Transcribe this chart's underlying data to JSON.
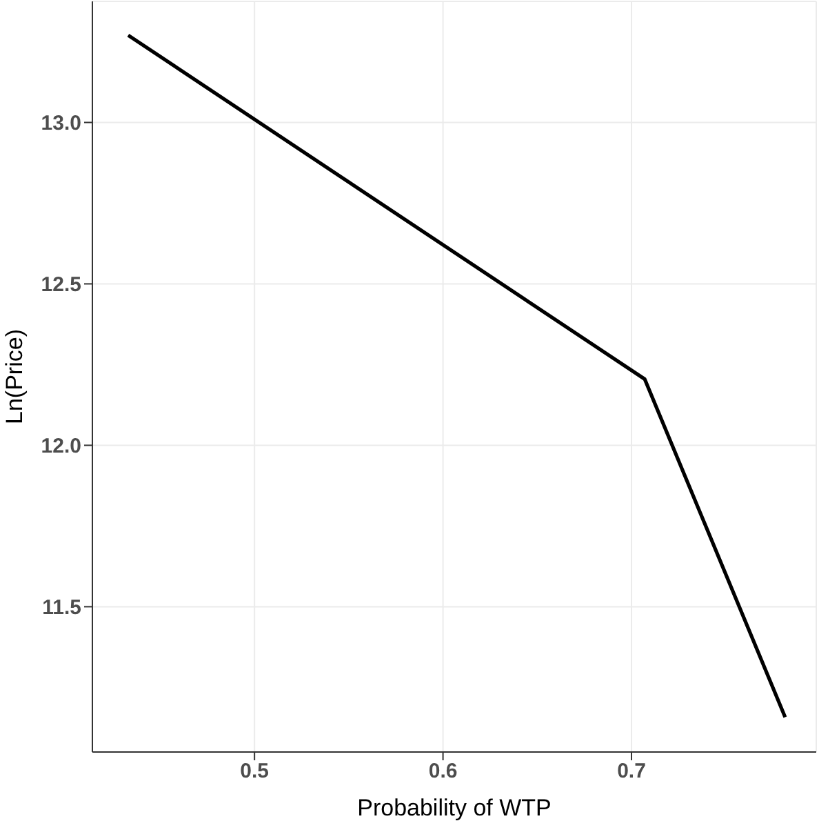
{
  "chart_data": {
    "type": "line",
    "xlabel": "Probability of WTP",
    "ylabel": "Ln(Price)",
    "x": [
      0.433,
      0.707,
      0.7815
    ],
    "series": [
      {
        "color": "#000000",
        "values": [
          13.27,
          12.205,
          11.158
        ]
      }
    ],
    "xlim": [
      0.414,
      0.798
    ],
    "xticks": [
      0.5,
      0.6,
      0.7
    ],
    "ylim": [
      11.05,
      13.375
    ],
    "yticks": [
      11.5,
      {
        "value": 12,
        "label": "12.0"
      },
      12.5,
      {
        "value": 13,
        "label": "13.0"
      }
    ],
    "grid": true,
    "legend": false,
    "marker": "none",
    "line_style": "solid"
  }
}
